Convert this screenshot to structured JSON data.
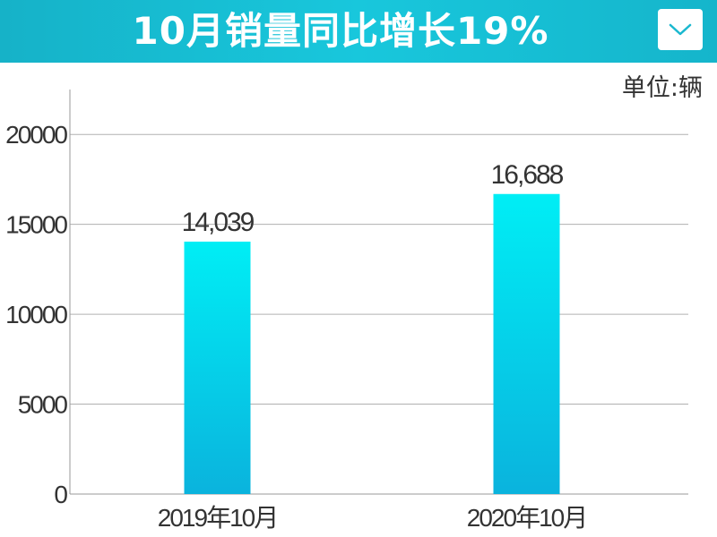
{
  "header": {
    "title": "10月销量同比增长19%",
    "dropdown_icon": "chevron-down-icon"
  },
  "colors": {
    "header_bg": "#18c0d6",
    "bar_top": "#00eef5",
    "bar_bottom": "#0ab3dd",
    "grid": "#b0b0b0",
    "text": "#333333"
  },
  "chart_data": {
    "type": "bar",
    "unit_label": "单位:辆",
    "categories": [
      "2019年10月",
      "2020年10月"
    ],
    "values": [
      14039,
      16688
    ],
    "value_labels": [
      "14,039",
      "16,688"
    ],
    "yticks": [
      0,
      5000,
      10000,
      15000,
      20000
    ],
    "ylim": [
      0,
      22500
    ],
    "grid": true,
    "legend": "none"
  }
}
